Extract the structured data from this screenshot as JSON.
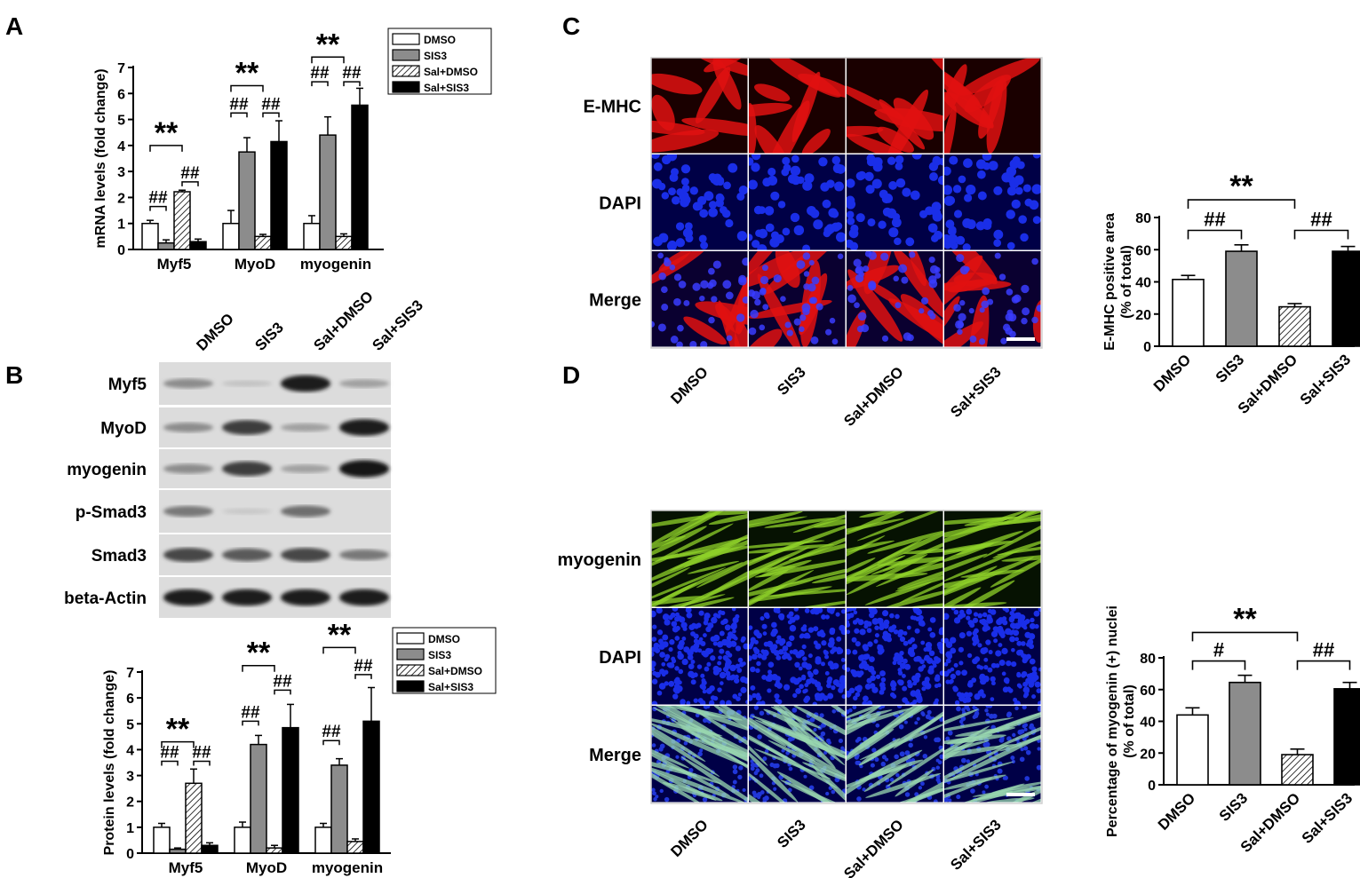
{
  "panels": {
    "A": "A",
    "B": "B",
    "C": "C",
    "D": "D"
  },
  "colors": {
    "dmso": "#ffffff",
    "sis3": "#8c8c8c",
    "sal_dmso": "hatched",
    "sal_sis3": "#000000",
    "emhc_stain": "#e01010",
    "dapi_stain": "#1a2ee8",
    "myogenin_stain": "#8fd22a"
  },
  "blot": {
    "lanes": [
      "DMSO",
      "SIS3",
      "Sal+DMSO",
      "Sal+SIS3"
    ],
    "rows": [
      {
        "label": "Myf5",
        "intensity": [
          0.35,
          0.08,
          0.9,
          0.25
        ]
      },
      {
        "label": "MyoD",
        "intensity": [
          0.35,
          0.75,
          0.25,
          0.9
        ]
      },
      {
        "label": "myogenin",
        "intensity": [
          0.35,
          0.75,
          0.25,
          0.95
        ]
      },
      {
        "label": "p-Smad3",
        "intensity": [
          0.45,
          0.05,
          0.5,
          0.0
        ]
      },
      {
        "label": "Smad3",
        "intensity": [
          0.7,
          0.6,
          0.7,
          0.45
        ]
      },
      {
        "label": "beta-Actin",
        "intensity": [
          0.9,
          0.9,
          0.9,
          0.9
        ]
      }
    ]
  },
  "imaging_C": {
    "rows": [
      "E-MHC",
      "DAPI",
      "Merge"
    ],
    "columns": [
      "DMSO",
      "SIS3",
      "Sal+DMSO",
      "Sal+SIS3"
    ]
  },
  "imaging_D": {
    "rows": [
      "myogenin",
      "DAPI",
      "Merge"
    ],
    "columns": [
      "DMSO",
      "SIS3",
      "Sal+DMSO",
      "Sal+SIS3"
    ]
  },
  "chart_data": [
    {
      "id": "A",
      "type": "bar",
      "categories": [
        "Myf5",
        "MyoD",
        "myogenin"
      ],
      "ylabel": "mRNA levels (fold change)",
      "ylim": [
        0,
        7
      ],
      "yticks": [
        0,
        1,
        2,
        3,
        4,
        5,
        6,
        7
      ],
      "legend": {
        "placement": "top-right",
        "entries": [
          "DMSO",
          "SIS3",
          "Sal+DMSO",
          "Sal+SIS3"
        ]
      },
      "series": [
        {
          "name": "DMSO",
          "values": [
            1.0,
            1.0,
            1.0
          ],
          "errors": [
            0.12,
            0.5,
            0.3
          ]
        },
        {
          "name": "SIS3",
          "values": [
            0.25,
            3.75,
            4.4
          ],
          "errors": [
            0.12,
            0.55,
            0.7
          ]
        },
        {
          "name": "Sal+DMSO",
          "values": [
            2.22,
            0.5,
            0.5
          ],
          "errors": [
            0.06,
            0.08,
            0.1
          ]
        },
        {
          "name": "Sal+SIS3",
          "values": [
            0.3,
            4.15,
            5.55
          ],
          "errors": [
            0.1,
            0.8,
            0.65
          ]
        }
      ],
      "annotations": [
        {
          "cat": 0,
          "from": 0,
          "to": 2,
          "text": "**",
          "y": 4.0
        },
        {
          "cat": 0,
          "from": 0,
          "to": 1,
          "text": "##",
          "y": 1.65
        },
        {
          "cat": 0,
          "from": 2,
          "to": 3,
          "text": "##",
          "y": 2.6
        },
        {
          "cat": 1,
          "from": 0,
          "to": 2,
          "text": "**",
          "y": 6.3
        },
        {
          "cat": 1,
          "from": 0,
          "to": 1,
          "text": "##",
          "y": 5.25
        },
        {
          "cat": 1,
          "from": 2,
          "to": 3,
          "text": "##",
          "y": 5.25
        },
        {
          "cat": 2,
          "from": 0,
          "to": 2,
          "text": "**",
          "y": 7.4
        },
        {
          "cat": 2,
          "from": 0,
          "to": 1,
          "text": "##",
          "y": 6.45
        },
        {
          "cat": 2,
          "from": 2,
          "to": 3,
          "text": "##",
          "y": 6.45
        }
      ]
    },
    {
      "id": "B",
      "type": "bar",
      "categories": [
        "Myf5",
        "MyoD",
        "myogenin"
      ],
      "ylabel": "Protein levels (fold change)",
      "ylim": [
        0,
        7
      ],
      "yticks": [
        0,
        1,
        2,
        3,
        4,
        5,
        6,
        7
      ],
      "legend": {
        "placement": "top-right",
        "entries": [
          "DMSO",
          "SIS3",
          "Sal+DMSO",
          "Sal+SIS3"
        ]
      },
      "series": [
        {
          "name": "DMSO",
          "values": [
            1.0,
            1.0,
            1.0
          ],
          "errors": [
            0.15,
            0.2,
            0.15
          ]
        },
        {
          "name": "SIS3",
          "values": [
            0.15,
            4.2,
            3.4
          ],
          "errors": [
            0.05,
            0.35,
            0.25
          ]
        },
        {
          "name": "Sal+DMSO",
          "values": [
            2.7,
            0.2,
            0.45
          ],
          "errors": [
            0.55,
            0.1,
            0.1
          ]
        },
        {
          "name": "Sal+SIS3",
          "values": [
            0.3,
            4.85,
            5.1
          ],
          "errors": [
            0.1,
            0.9,
            1.3
          ]
        }
      ],
      "annotations": [
        {
          "cat": 0,
          "from": 0,
          "to": 2,
          "text": "**",
          "y": 4.3
        },
        {
          "cat": 0,
          "from": 0,
          "to": 1,
          "text": "##",
          "y": 3.55
        },
        {
          "cat": 0,
          "from": 2,
          "to": 3,
          "text": "##",
          "y": 3.55
        },
        {
          "cat": 1,
          "from": 0,
          "to": 2,
          "text": "**",
          "y": 7.25
        },
        {
          "cat": 1,
          "from": 0,
          "to": 1,
          "text": "##",
          "y": 5.1
        },
        {
          "cat": 1,
          "from": 2,
          "to": 3,
          "text": "##",
          "y": 6.3
        },
        {
          "cat": 2,
          "from": 0,
          "to": 2,
          "text": "**",
          "y": 7.95
        },
        {
          "cat": 2,
          "from": 0,
          "to": 1,
          "text": "##",
          "y": 4.35
        },
        {
          "cat": 2,
          "from": 2,
          "to": 3,
          "text": "##",
          "y": 6.9
        }
      ]
    },
    {
      "id": "C",
      "type": "bar",
      "categories": [
        "DMSO",
        "SIS3",
        "Sal+DMSO",
        "Sal+SIS3"
      ],
      "ylabel": [
        "E-MHC positive area",
        "(% of total)"
      ],
      "ylim": [
        0,
        80
      ],
      "yticks": [
        0,
        20,
        40,
        60,
        80
      ],
      "series": [
        {
          "values": [
            41.5,
            59,
            24.5,
            59
          ],
          "errors": [
            2.5,
            4,
            2,
            3
          ]
        }
      ],
      "annotations": [
        {
          "from": 0,
          "to": 2,
          "text": "**",
          "y": 91
        },
        {
          "from": 0,
          "to": 1,
          "text": "##",
          "y": 72
        },
        {
          "from": 2,
          "to": 3,
          "text": "##",
          "y": 72
        }
      ]
    },
    {
      "id": "D",
      "type": "bar",
      "categories": [
        "DMSO",
        "SIS3",
        "Sal+DMSO",
        "Sal+SIS3"
      ],
      "ylabel": [
        "Percentage of myogenin (+) nuclei",
        "(% of total)"
      ],
      "ylim": [
        0,
        80
      ],
      "yticks": [
        0,
        20,
        40,
        60,
        80
      ],
      "series": [
        {
          "values": [
            44,
            64.5,
            19,
            60.5
          ],
          "errors": [
            4.5,
            4.5,
            3.5,
            4
          ]
        }
      ],
      "annotations": [
        {
          "from": 0,
          "to": 2,
          "text": "**",
          "y": 96
        },
        {
          "from": 0,
          "to": 1,
          "text": "#",
          "y": 78
        },
        {
          "from": 2,
          "to": 3,
          "text": "##",
          "y": 78
        }
      ]
    }
  ]
}
